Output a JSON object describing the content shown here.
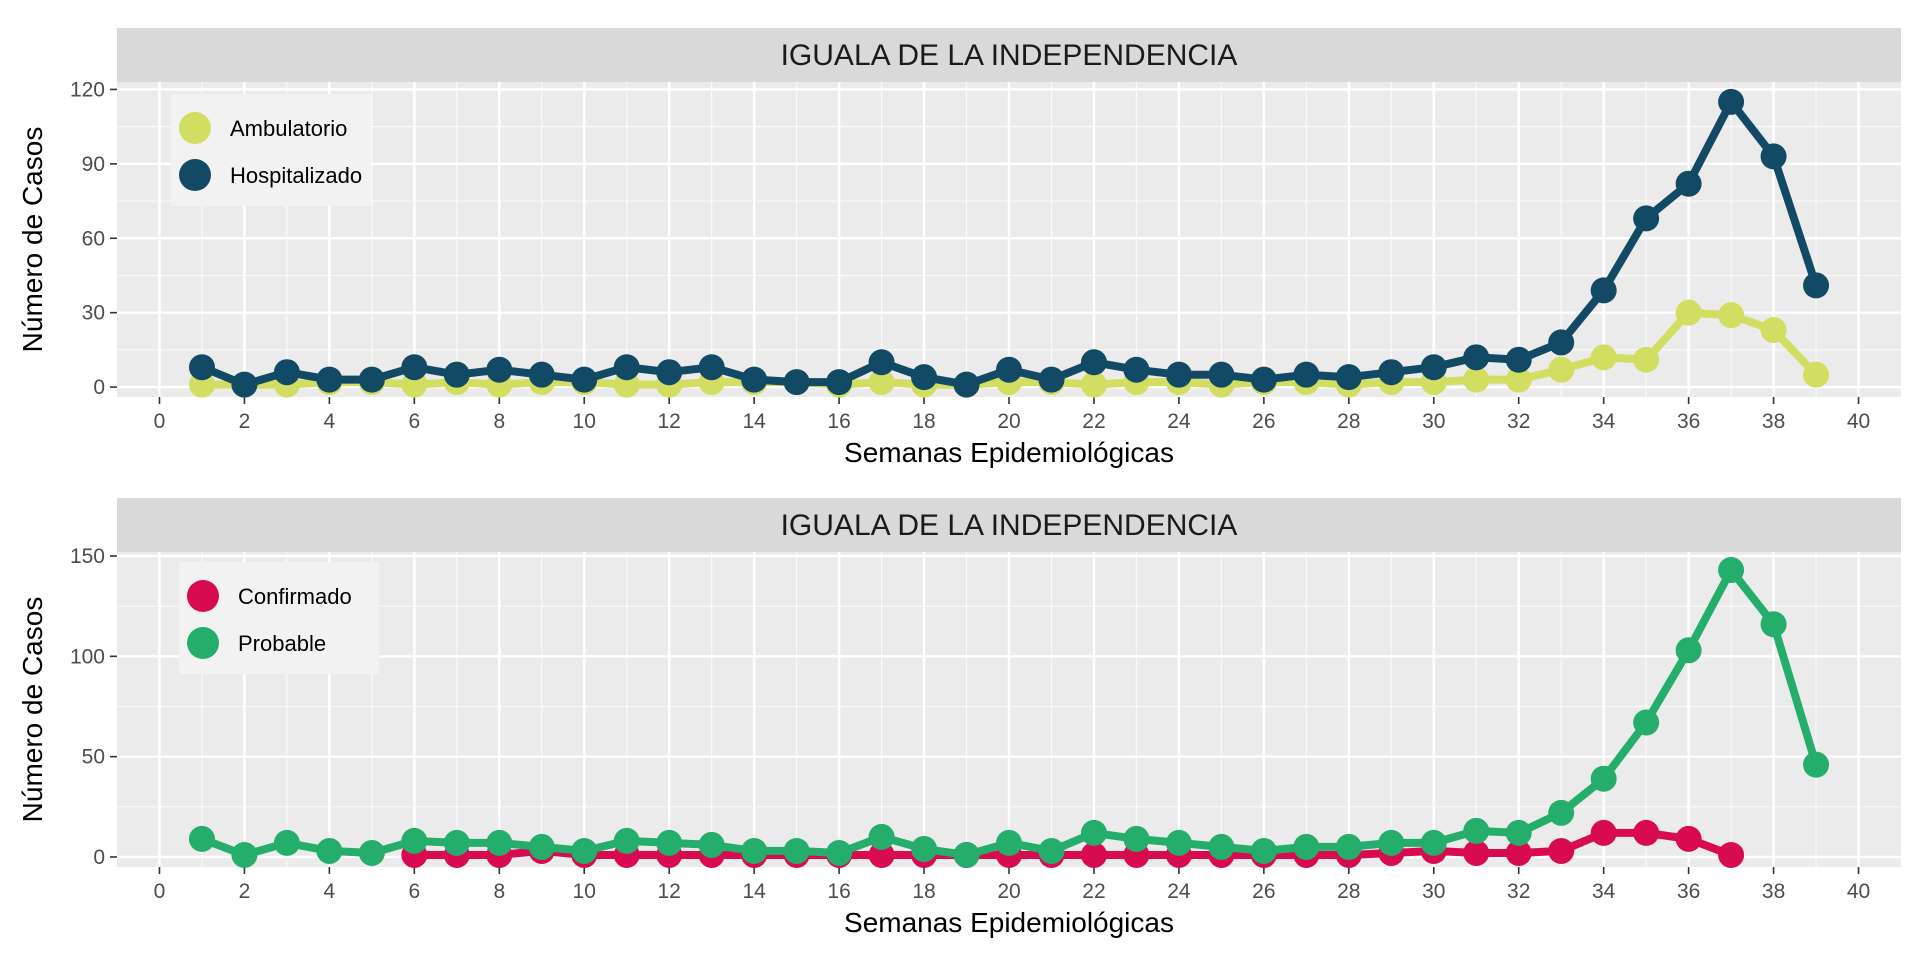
{
  "chart_data": [
    {
      "type": "line",
      "title": "IGUALA DE LA INDEPENDENCIA",
      "xlabel": "Semanas Epidemiológicas",
      "ylabel": "Número de Casos",
      "xlim": [
        -1,
        41
      ],
      "ylim": [
        -4,
        123
      ],
      "x_ticks": [
        "0",
        "2",
        "4",
        "6",
        "8",
        "10",
        "12",
        "14",
        "16",
        "18",
        "20",
        "22",
        "24",
        "26",
        "28",
        "30",
        "32",
        "34",
        "36",
        "38",
        "40"
      ],
      "y_ticks": [
        "0",
        "30",
        "60",
        "90",
        "120"
      ],
      "legend_position": "top-left",
      "grid": true,
      "series": [
        {
          "name": "Ambulatorio",
          "color": "#d2de62",
          "x": [
            1,
            2,
            3,
            4,
            5,
            6,
            7,
            8,
            9,
            10,
            11,
            12,
            13,
            14,
            15,
            16,
            17,
            18,
            19,
            20,
            21,
            22,
            23,
            24,
            25,
            26,
            27,
            28,
            29,
            30,
            31,
            32,
            33,
            34,
            35,
            36,
            37,
            38,
            39
          ],
          "values": [
            1,
            1,
            1,
            2,
            2,
            1,
            2,
            1,
            2,
            2,
            1,
            1,
            2,
            2,
            2,
            1,
            2,
            1,
            1,
            2,
            2,
            1,
            2,
            2,
            1,
            2,
            2,
            1,
            2,
            2,
            3,
            3,
            7,
            12,
            11,
            30,
            29,
            23,
            5
          ]
        },
        {
          "name": "Hospitalizado",
          "color": "#124a65",
          "x": [
            1,
            2,
            3,
            4,
            5,
            6,
            7,
            8,
            9,
            10,
            11,
            12,
            13,
            14,
            15,
            16,
            17,
            18,
            19,
            20,
            21,
            22,
            23,
            24,
            25,
            26,
            27,
            28,
            29,
            30,
            31,
            32,
            33,
            34,
            35,
            36,
            37,
            38,
            39
          ],
          "values": [
            8,
            1,
            6,
            3,
            3,
            8,
            5,
            7,
            5,
            3,
            8,
            6,
            8,
            3,
            2,
            2,
            10,
            4,
            1,
            7,
            3,
            10,
            7,
            5,
            5,
            3,
            5,
            4,
            6,
            8,
            12,
            11,
            18,
            39,
            68,
            82,
            115,
            93,
            41
          ]
        }
      ]
    },
    {
      "type": "line",
      "title": "IGUALA DE LA INDEPENDENCIA",
      "xlabel": "Semanas Epidemiológicas",
      "ylabel": "Número de Casos",
      "xlim": [
        -1,
        41
      ],
      "ylim": [
        -5,
        152
      ],
      "x_ticks": [
        "0",
        "2",
        "4",
        "6",
        "8",
        "10",
        "12",
        "14",
        "16",
        "18",
        "20",
        "22",
        "24",
        "26",
        "28",
        "30",
        "32",
        "34",
        "36",
        "38",
        "40"
      ],
      "y_ticks": [
        "0",
        "50",
        "100",
        "150"
      ],
      "legend_position": "top-left",
      "grid": true,
      "series": [
        {
          "name": "Confirmado",
          "color": "#d80b51",
          "x": [
            6,
            7,
            8,
            9,
            10,
            11,
            12,
            13,
            14,
            15,
            16,
            17,
            18,
            19,
            20,
            21,
            22,
            23,
            24,
            25,
            26,
            27,
            28,
            29,
            30,
            31,
            32,
            33,
            34,
            35,
            36,
            37
          ],
          "values": [
            1,
            1,
            1,
            3,
            1,
            1,
            1,
            1,
            1,
            1,
            1,
            1,
            1,
            1,
            1,
            1,
            1,
            1,
            1,
            1,
            1,
            1,
            1,
            2,
            3,
            2,
            2,
            3,
            12,
            12,
            9,
            1
          ]
        },
        {
          "name": "Probable",
          "color": "#25ad6b",
          "x": [
            1,
            2,
            3,
            4,
            5,
            6,
            7,
            8,
            9,
            10,
            11,
            12,
            13,
            14,
            15,
            16,
            17,
            18,
            19,
            20,
            21,
            22,
            23,
            24,
            25,
            26,
            27,
            28,
            29,
            30,
            31,
            32,
            33,
            34,
            35,
            36,
            37,
            38,
            39
          ],
          "values": [
            9,
            1,
            7,
            3,
            2,
            8,
            7,
            7,
            5,
            3,
            8,
            7,
            6,
            3,
            3,
            2,
            10,
            4,
            1,
            7,
            3,
            12,
            9,
            7,
            5,
            3,
            5,
            5,
            7,
            7,
            13,
            12,
            22,
            39,
            67,
            103,
            143,
            116,
            46
          ]
        }
      ]
    }
  ]
}
